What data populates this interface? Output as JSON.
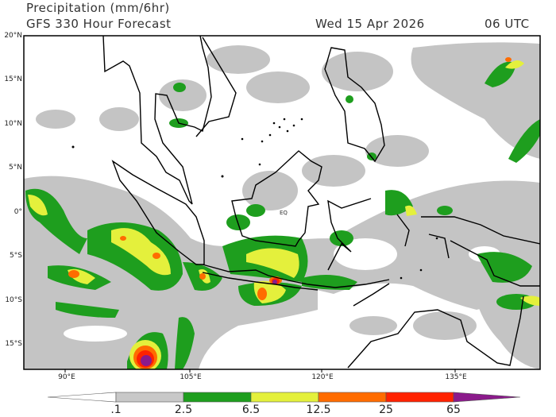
{
  "header": {
    "title": "Precipitation (mm/6hr)",
    "subtitle": "GFS 330 Hour Forecast",
    "date": "Wed 15 Apr 2026",
    "time": "06 UTC"
  },
  "map": {
    "region": "Maritime Continent / Indonesia",
    "equator_label": "EQ",
    "lat_labels": [
      "20°N",
      "15°N",
      "10°N",
      "5°N",
      "0°",
      "5°S",
      "10°S",
      "15°S"
    ],
    "lon_labels": [
      "90°E",
      "105°E",
      "120°E",
      "135°E"
    ],
    "features": [
      "tropical cyclone south of Sumatra near 15S 98E",
      "heavy rain over Java and Bali",
      "rain band southwest of Sumatra"
    ]
  },
  "colorbar": {
    "levels": [
      ".1",
      "2.5",
      "6.5",
      "12.5",
      "25",
      "65"
    ],
    "colors": {
      "below": "#ffffff",
      "c1": "#c8c8c8",
      "c2": "#1e9e1e",
      "c3": "#e4f03c",
      "c4": "#ff6c00",
      "c5": "#ff2200",
      "above": "#8b1a8b"
    }
  }
}
